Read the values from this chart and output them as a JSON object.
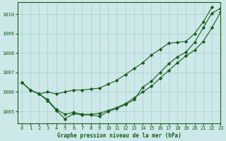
{
  "title": "Graphe pression niveau de la mer (hPa)",
  "background_color": "#cce8e8",
  "grid_color": "#aacccc",
  "line_color": "#1a5c1a",
  "xlim": [
    -0.5,
    23
  ],
  "ylim": [
    1004.4,
    1010.6
  ],
  "yticks": [
    1005,
    1006,
    1007,
    1008,
    1009,
    1010
  ],
  "xticks": [
    0,
    1,
    2,
    3,
    4,
    5,
    6,
    7,
    8,
    9,
    10,
    11,
    12,
    13,
    14,
    15,
    16,
    17,
    18,
    19,
    20,
    21,
    22,
    23
  ],
  "line1_x": [
    0,
    1,
    2,
    3,
    4,
    5,
    6,
    7,
    8,
    9,
    10,
    11,
    12,
    13,
    14,
    15,
    16,
    17,
    18,
    19,
    20,
    21,
    22
  ],
  "line1_y": [
    1006.5,
    1006.1,
    1005.9,
    1006.0,
    1005.9,
    1006.0,
    1006.1,
    1006.1,
    1006.15,
    1006.2,
    1006.4,
    1006.6,
    1006.9,
    1007.2,
    1007.5,
    1007.9,
    1008.2,
    1008.5,
    1008.55,
    1008.6,
    1009.0,
    1009.6,
    1010.35
  ],
  "line2_x": [
    0,
    1,
    2,
    3,
    4,
    5,
    6,
    7,
    8,
    9,
    10,
    11,
    12,
    13,
    14,
    15,
    16,
    17,
    18,
    19,
    20,
    21,
    22,
    23
  ],
  "line2_y": [
    1006.5,
    1006.1,
    1005.9,
    1005.6,
    1005.1,
    1004.85,
    1004.95,
    1004.85,
    1004.85,
    1004.9,
    1005.05,
    1005.2,
    1005.4,
    1005.7,
    1006.0,
    1006.3,
    1006.7,
    1007.1,
    1007.5,
    1007.85,
    1008.15,
    1008.6,
    1009.3,
    1010.1
  ],
  "line3_x": [
    0,
    1,
    2,
    3,
    4,
    5,
    6,
    7,
    8,
    9,
    10,
    11,
    12,
    13,
    14,
    15,
    16,
    17,
    18,
    19,
    20,
    21,
    22,
    23
  ],
  "line3_y": [
    1006.5,
    1006.1,
    1005.9,
    1005.55,
    1005.05,
    1004.62,
    1004.88,
    1004.82,
    1004.82,
    1004.75,
    1005.0,
    1005.15,
    1005.35,
    1005.6,
    1006.25,
    1006.55,
    1007.0,
    1007.45,
    1007.8,
    1008.05,
    1008.55,
    1009.3,
    1010.05,
    1010.3
  ]
}
